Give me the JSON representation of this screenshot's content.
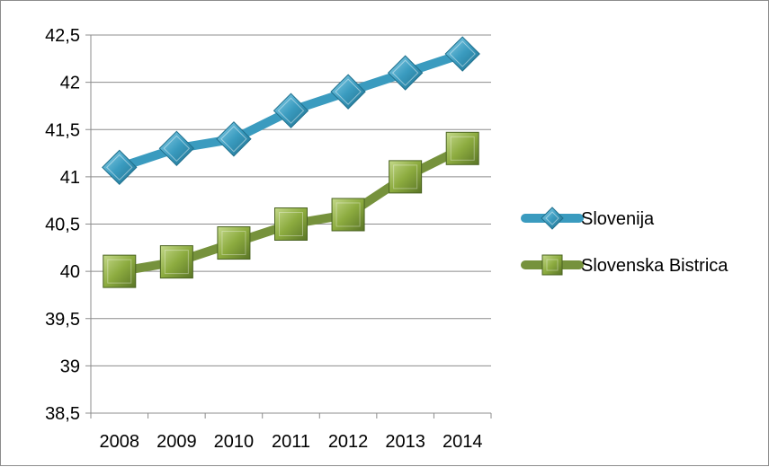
{
  "chart_data": {
    "type": "line",
    "title": "",
    "xlabel": "",
    "ylabel": "",
    "categories": [
      "2008",
      "2009",
      "2010",
      "2011",
      "2012",
      "2013",
      "2014"
    ],
    "ylim": [
      38.5,
      42.5
    ],
    "yticks": [
      {
        "value": 42.5,
        "label": "42,5"
      },
      {
        "value": 42,
        "label": "42"
      },
      {
        "value": 41.5,
        "label": "41,5"
      },
      {
        "value": 41,
        "label": "41"
      },
      {
        "value": 40.5,
        "label": "40,5"
      },
      {
        "value": 40,
        "label": "40"
      },
      {
        "value": 39.5,
        "label": "39,5"
      },
      {
        "value": 39,
        "label": "39"
      },
      {
        "value": 38.5,
        "label": "38,5"
      }
    ],
    "grid": true,
    "legend_position": "right",
    "series": [
      {
        "name": "Slovenija",
        "marker": "diamond",
        "color": "#3a9bbf",
        "values": [
          41.1,
          41.3,
          41.4,
          41.7,
          41.9,
          42.1,
          42.3
        ]
      },
      {
        "name": "Slovenska Bistrica",
        "marker": "square",
        "color": "#76923c",
        "values": [
          40.0,
          40.1,
          40.3,
          40.5,
          40.6,
          41.0,
          41.3
        ]
      }
    ]
  }
}
